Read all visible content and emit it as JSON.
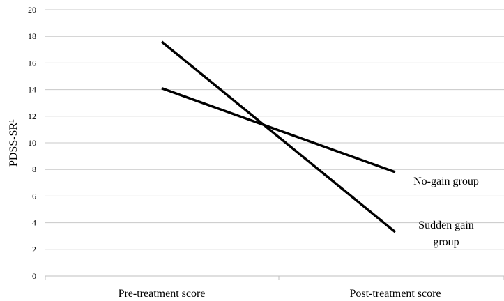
{
  "chart_data": {
    "type": "line",
    "categories": [
      "Pre-treatment score",
      "Post-treatment score"
    ],
    "ylabel": "PDSS-SR¹",
    "ylim": [
      0,
      20
    ],
    "yticks": [
      "0",
      "2",
      "4",
      "6",
      "8",
      "10",
      "12",
      "14",
      "16",
      "18",
      "20"
    ],
    "grid": true,
    "series": [
      {
        "name": "No-gain group",
        "values": [
          14.1,
          7.8
        ],
        "label_lines": [
          "No-gain group"
        ]
      },
      {
        "name": "Sudden gain group",
        "values": [
          17.6,
          3.3
        ],
        "label_lines": [
          "Sudden gain",
          "group"
        ]
      }
    ],
    "colors": {
      "line": "#000000",
      "grid": "#c8c8c8",
      "axis": "#bfbfbf"
    }
  }
}
